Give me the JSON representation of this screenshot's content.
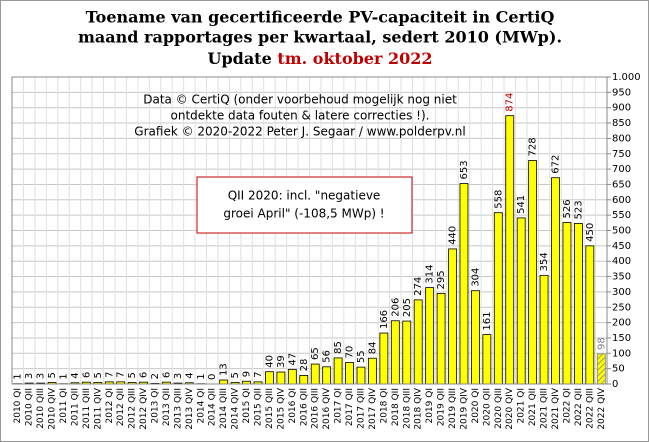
{
  "chart_data": {
    "type": "bar",
    "title_lines": [
      "Toename van gecertificeerde PV-capaciteit in CertiQ",
      "maand rapportages per kwartaal, sedert 2010 (MWp)."
    ],
    "update_label": "Update",
    "update_period": "tm. oktober 2022",
    "annotation_lines": [
      "Data © CertiQ (onder voorbehoud mogelijk  nog niet",
      "ontdekte data fouten & latere correcties !).",
      "Grafiek  © 2020-2022 Peter J. Segaar / www.polderpv.nl"
    ],
    "box_lines": [
      "QII 2020:  incl. \"negatieve",
      "groei April\"  (-108,5 MWp)  !"
    ],
    "categories": [
      "2010 QI",
      "2010 QII",
      "2010 QIII",
      "2010 QIV",
      "2011 QI",
      "2011 QII",
      "2011 QIII",
      "2011 QIV",
      "2012 QI",
      "2012 QII",
      "2012 QIII",
      "2012 QIV",
      "2013 QI",
      "2013 QII",
      "2013 QIII",
      "2013 QIV",
      "2014 QI",
      "2014 QII",
      "2014 QIII",
      "2014 QIV",
      "2015 QI",
      "2015 QII",
      "2015 QIII",
      "2015 QIV",
      "2016 QI",
      "2016 QII",
      "2016 QIII",
      "2016 QIV",
      "2017 QI",
      "2017 QII",
      "2017 QIII",
      "2017 QIV",
      "2018 QI",
      "2018 QII",
      "2018 QIII",
      "2018 QIV",
      "2019 QI",
      "2019 QII",
      "2019 QIII",
      "2019 QIV",
      "2020 QI",
      "2020 QII",
      "2020 QIII",
      "2020 QIV",
      "2021 QI",
      "2021 QII",
      "2021 QIII",
      "2021 QIV",
      "2022 QI",
      "2022 QII",
      "2022 QIII",
      "2022 QIV"
    ],
    "values": [
      1,
      3,
      3,
      5,
      1,
      4,
      6,
      5,
      7,
      7,
      5,
      6,
      2,
      6,
      3,
      4,
      1,
      0,
      13,
      5,
      9,
      7,
      40,
      39,
      47,
      28,
      65,
      56,
      85,
      70,
      55,
      84,
      166,
      206,
      205,
      274,
      314,
      295,
      440,
      653,
      304,
      161,
      558,
      874,
      541,
      728,
      354,
      672,
      526,
      523,
      450,
      98
    ],
    "color": "#ffff00",
    "highlight_color": "#c00000",
    "partial_color": "#808080",
    "hatched_last": true,
    "ylim": [
      0,
      1000
    ],
    "yticks": [
      0,
      50,
      100,
      150,
      200,
      250,
      300,
      350,
      400,
      450,
      500,
      550,
      600,
      650,
      700,
      750,
      800,
      850,
      900,
      950,
      {
        "value": 1000,
        "label": "1.000"
      }
    ],
    "grid": true
  }
}
